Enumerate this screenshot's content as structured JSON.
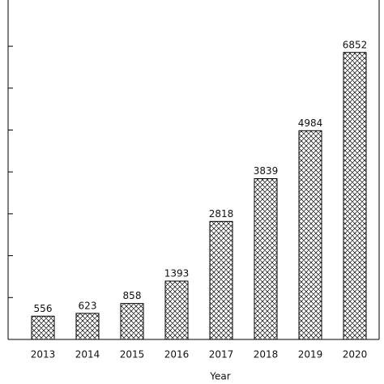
{
  "chart_data": {
    "type": "bar",
    "x_label": "Year",
    "categories": [
      "2013",
      "2014",
      "2015",
      "2016",
      "2017",
      "2018",
      "2019",
      "2020"
    ],
    "values": [
      556,
      623,
      858,
      1393,
      2818,
      3839,
      4984,
      6852
    ],
    "color": "#000000",
    "ylim": [
      0,
      8000
    ],
    "yticks": [
      0,
      1000,
      2000,
      3000,
      4000,
      5000,
      6000,
      7000
    ]
  }
}
